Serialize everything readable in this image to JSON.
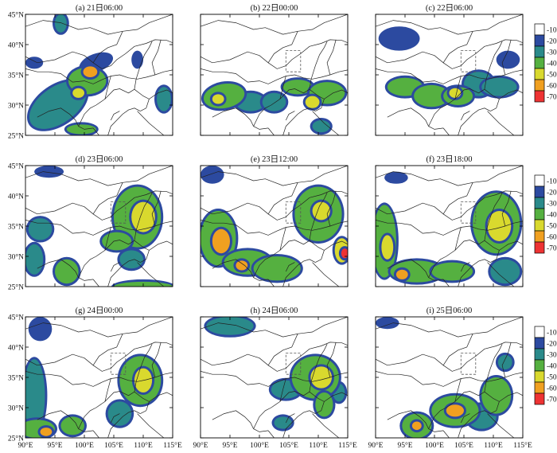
{
  "figure": {
    "panels": [
      {
        "title": "(a) 21日06:00",
        "show_xticks": false,
        "show_yticks": true,
        "box": false,
        "blobs": [
          {
            "lon": 95.5,
            "lat": 30.0,
            "rx": 5.5,
            "ry": 3.0,
            "rot": -35,
            "level": -30
          },
          {
            "lon": 100.5,
            "lat": 34.0,
            "rx": 3.2,
            "ry": 2.2,
            "rot": 0,
            "level": -40
          },
          {
            "lon": 101.0,
            "lat": 35.5,
            "rx": 1.2,
            "ry": 0.9,
            "rot": 0,
            "level": -60
          },
          {
            "lon": 99.0,
            "lat": 32.0,
            "rx": 1.0,
            "ry": 0.8,
            "rot": 0,
            "level": -50
          },
          {
            "lon": 102.0,
            "lat": 37.0,
            "rx": 3.0,
            "ry": 1.5,
            "rot": -20,
            "level": -20
          },
          {
            "lon": 91.5,
            "lat": 37.0,
            "rx": 1.5,
            "ry": 1.0,
            "rot": 0,
            "level": -20
          },
          {
            "lon": 96.0,
            "lat": 43.5,
            "rx": 1.0,
            "ry": 1.5,
            "rot": 0,
            "level": -30
          },
          {
            "lon": 113.5,
            "lat": 31.0,
            "rx": 1.2,
            "ry": 2.0,
            "rot": 0,
            "level": -30
          },
          {
            "lon": 99.5,
            "lat": 26.0,
            "rx": 2.5,
            "ry": 0.8,
            "rot": 0,
            "level": -40
          },
          {
            "lon": 109.0,
            "lat": 37.5,
            "rx": 1.0,
            "ry": 1.5,
            "rot": 0,
            "level": -20
          }
        ]
      },
      {
        "title": "(b) 22日00:00",
        "show_xticks": false,
        "show_yticks": false,
        "box": true,
        "blobs": [
          {
            "lon": 94.0,
            "lat": 31.5,
            "rx": 3.5,
            "ry": 2.0,
            "rot": -10,
            "level": -40
          },
          {
            "lon": 93.0,
            "lat": 31.0,
            "rx": 1.0,
            "ry": 0.8,
            "rot": 0,
            "level": -50
          },
          {
            "lon": 98.5,
            "lat": 30.5,
            "rx": 2.5,
            "ry": 1.5,
            "rot": 0,
            "level": -30
          },
          {
            "lon": 102.5,
            "lat": 30.5,
            "rx": 2.0,
            "ry": 1.5,
            "rot": 0,
            "level": -30
          },
          {
            "lon": 106.5,
            "lat": 33.0,
            "rx": 2.5,
            "ry": 1.2,
            "rot": 0,
            "level": -40
          },
          {
            "lon": 111.5,
            "lat": 32.0,
            "rx": 3.0,
            "ry": 1.8,
            "rot": 0,
            "level": -40
          },
          {
            "lon": 109.0,
            "lat": 30.5,
            "rx": 1.2,
            "ry": 1.0,
            "rot": 0,
            "level": -50
          },
          {
            "lon": 110.5,
            "lat": 26.5,
            "rx": 1.5,
            "ry": 1.0,
            "rot": 0,
            "level": -30
          }
        ]
      },
      {
        "title": "(c) 22日06:00",
        "show_xticks": false,
        "show_yticks": false,
        "box": true,
        "blobs": [
          {
            "lon": 94.0,
            "lat": 41.0,
            "rx": 3.5,
            "ry": 2.0,
            "rot": 0,
            "level": -20
          },
          {
            "lon": 95.0,
            "lat": 33.0,
            "rx": 3.0,
            "ry": 1.5,
            "rot": 0,
            "level": -40
          },
          {
            "lon": 99.5,
            "lat": 31.5,
            "rx": 3.0,
            "ry": 1.8,
            "rot": 0,
            "level": -40
          },
          {
            "lon": 104.0,
            "lat": 31.5,
            "rx": 2.5,
            "ry": 1.5,
            "rot": 0,
            "level": -40
          },
          {
            "lon": 107.5,
            "lat": 33.5,
            "rx": 2.5,
            "ry": 2.0,
            "rot": 0,
            "level": -30
          },
          {
            "lon": 111.0,
            "lat": 33.0,
            "rx": 3.0,
            "ry": 1.5,
            "rot": 0,
            "level": -30
          },
          {
            "lon": 112.5,
            "lat": 37.5,
            "rx": 2.0,
            "ry": 1.5,
            "rot": 0,
            "level": -20
          },
          {
            "lon": 103.5,
            "lat": 32.0,
            "rx": 1.0,
            "ry": 0.8,
            "rot": 0,
            "level": -50
          }
        ]
      },
      {
        "title": "(d) 23日06:00",
        "show_xticks": false,
        "show_yticks": true,
        "box": true,
        "blobs": [
          {
            "lon": 109.0,
            "lat": 36.5,
            "rx": 4.0,
            "ry": 5.0,
            "rot": 0,
            "level": -40
          },
          {
            "lon": 110.0,
            "lat": 36.5,
            "rx": 2.0,
            "ry": 2.5,
            "rot": 0,
            "level": -50
          },
          {
            "lon": 105.5,
            "lat": 32.5,
            "rx": 2.5,
            "ry": 1.5,
            "rot": 0,
            "level": -40
          },
          {
            "lon": 92.5,
            "lat": 34.5,
            "rx": 2.0,
            "ry": 1.8,
            "rot": 0,
            "level": -30
          },
          {
            "lon": 91.5,
            "lat": 29.5,
            "rx": 1.5,
            "ry": 2.5,
            "rot": 0,
            "level": -30
          },
          {
            "lon": 97.0,
            "lat": 27.5,
            "rx": 2.0,
            "ry": 2.0,
            "rot": 0,
            "level": -40
          },
          {
            "lon": 110.0,
            "lat": 25.0,
            "rx": 5.0,
            "ry": 0.8,
            "rot": 0,
            "level": -40
          },
          {
            "lon": 108.0,
            "lat": 29.5,
            "rx": 2.0,
            "ry": 1.5,
            "rot": 0,
            "level": -30
          },
          {
            "lon": 94.0,
            "lat": 44.0,
            "rx": 2.5,
            "ry": 1.0,
            "rot": 0,
            "level": -20
          }
        ]
      },
      {
        "title": "(e) 23日12:00",
        "show_xticks": false,
        "show_yticks": false,
        "box": true,
        "blobs": [
          {
            "lon": 93.0,
            "lat": 33.0,
            "rx": 3.0,
            "ry": 4.5,
            "rot": 0,
            "level": -40
          },
          {
            "lon": 93.5,
            "lat": 32.5,
            "rx": 1.5,
            "ry": 2.0,
            "rot": 0,
            "level": -60
          },
          {
            "lon": 98.0,
            "lat": 29.0,
            "rx": 4.0,
            "ry": 2.0,
            "rot": 0,
            "level": -40
          },
          {
            "lon": 103.0,
            "lat": 28.0,
            "rx": 4.0,
            "ry": 2.0,
            "rot": 0,
            "level": -40
          },
          {
            "lon": 110.0,
            "lat": 37.0,
            "rx": 4.0,
            "ry": 4.5,
            "rot": 0,
            "level": -40
          },
          {
            "lon": 110.5,
            "lat": 37.5,
            "rx": 1.5,
            "ry": 1.5,
            "rot": 0,
            "level": -50
          },
          {
            "lon": 114.0,
            "lat": 31.0,
            "rx": 1.2,
            "ry": 2.0,
            "rot": 0,
            "level": -50
          },
          {
            "lon": 114.5,
            "lat": 30.5,
            "rx": 0.6,
            "ry": 0.8,
            "rot": 0,
            "level": -70
          },
          {
            "lon": 92.0,
            "lat": 43.5,
            "rx": 2.0,
            "ry": 1.5,
            "rot": 0,
            "level": -20
          },
          {
            "lon": 97.0,
            "lat": 28.5,
            "rx": 1.0,
            "ry": 0.8,
            "rot": 0,
            "level": -60
          }
        ]
      },
      {
        "title": "(f) 23日18:00",
        "show_xticks": false,
        "show_yticks": false,
        "box": true,
        "blobs": [
          {
            "lon": 91.5,
            "lat": 32.5,
            "rx": 2.0,
            "ry": 6.0,
            "rot": 0,
            "level": -40
          },
          {
            "lon": 92.0,
            "lat": 31.5,
            "rx": 1.0,
            "ry": 2.0,
            "rot": 0,
            "level": -50
          },
          {
            "lon": 97.0,
            "lat": 27.5,
            "rx": 4.5,
            "ry": 1.8,
            "rot": 0,
            "level": -40
          },
          {
            "lon": 103.0,
            "lat": 27.5,
            "rx": 3.5,
            "ry": 1.5,
            "rot": 0,
            "level": -40
          },
          {
            "lon": 110.5,
            "lat": 35.5,
            "rx": 4.0,
            "ry": 5.0,
            "rot": 0,
            "level": -40
          },
          {
            "lon": 111.0,
            "lat": 35.0,
            "rx": 2.0,
            "ry": 2.5,
            "rot": 0,
            "level": -50
          },
          {
            "lon": 112.0,
            "lat": 27.5,
            "rx": 2.5,
            "ry": 2.0,
            "rot": 0,
            "level": -30
          },
          {
            "lon": 94.5,
            "lat": 27.0,
            "rx": 1.0,
            "ry": 0.8,
            "rot": 0,
            "level": -60
          },
          {
            "lon": 93.5,
            "lat": 43.0,
            "rx": 2.0,
            "ry": 1.0,
            "rot": 0,
            "level": -20
          }
        ]
      },
      {
        "title": "(g) 24日00:00",
        "show_xticks": true,
        "show_yticks": true,
        "box": true,
        "blobs": [
          {
            "lon": 91.5,
            "lat": 32.0,
            "rx": 1.8,
            "ry": 6.0,
            "rot": 0,
            "level": -30
          },
          {
            "lon": 92.0,
            "lat": 26.5,
            "rx": 3.0,
            "ry": 1.5,
            "rot": 0,
            "level": -40
          },
          {
            "lon": 93.5,
            "lat": 26.0,
            "rx": 1.0,
            "ry": 0.7,
            "rot": 0,
            "level": -60
          },
          {
            "lon": 98.0,
            "lat": 27.0,
            "rx": 2.0,
            "ry": 1.5,
            "rot": 0,
            "level": -40
          },
          {
            "lon": 109.5,
            "lat": 34.5,
            "rx": 3.5,
            "ry": 4.0,
            "rot": 0,
            "level": -40
          },
          {
            "lon": 110.0,
            "lat": 34.5,
            "rx": 1.5,
            "ry": 2.0,
            "rot": 0,
            "level": -50
          },
          {
            "lon": 106.0,
            "lat": 29.0,
            "rx": 2.0,
            "ry": 2.0,
            "rot": 0,
            "level": -30
          },
          {
            "lon": 92.5,
            "lat": 43.0,
            "rx": 2.0,
            "ry": 2.0,
            "rot": 0,
            "level": -20
          }
        ]
      },
      {
        "title": "(h) 24日06:00",
        "show_xticks": true,
        "show_yticks": false,
        "box": true,
        "blobs": [
          {
            "lon": 109.5,
            "lat": 35.0,
            "rx": 4.0,
            "ry": 3.5,
            "rot": 0,
            "level": -40
          },
          {
            "lon": 110.5,
            "lat": 35.0,
            "rx": 1.8,
            "ry": 1.8,
            "rot": 0,
            "level": -50
          },
          {
            "lon": 111.0,
            "lat": 30.5,
            "rx": 1.5,
            "ry": 2.0,
            "rot": 0,
            "level": -40
          },
          {
            "lon": 95.0,
            "lat": 43.5,
            "rx": 4.0,
            "ry": 1.5,
            "rot": 0,
            "level": -30
          },
          {
            "lon": 104.5,
            "lat": 33.0,
            "rx": 2.5,
            "ry": 1.5,
            "rot": 0,
            "level": -30
          },
          {
            "lon": 104.0,
            "lat": 27.5,
            "rx": 1.5,
            "ry": 1.0,
            "rot": 0,
            "level": -30
          },
          {
            "lon": 113.5,
            "lat": 32.5,
            "rx": 1.0,
            "ry": 1.5,
            "rot": 0,
            "level": -30
          }
        ]
      },
      {
        "title": "(i) 25日06:00",
        "show_xticks": true,
        "show_yticks": false,
        "box": true,
        "blobs": [
          {
            "lon": 103.5,
            "lat": 29.5,
            "rx": 4.0,
            "ry": 2.5,
            "rot": 0,
            "level": -40
          },
          {
            "lon": 103.5,
            "lat": 29.5,
            "rx": 1.5,
            "ry": 1.0,
            "rot": 0,
            "level": -60
          },
          {
            "lon": 97.0,
            "lat": 27.0,
            "rx": 2.5,
            "ry": 2.0,
            "rot": 0,
            "level": -40
          },
          {
            "lon": 97.0,
            "lat": 27.0,
            "rx": 0.8,
            "ry": 0.7,
            "rot": 0,
            "level": -60
          },
          {
            "lon": 110.5,
            "lat": 32.0,
            "rx": 2.5,
            "ry": 3.0,
            "rot": 0,
            "level": -40
          },
          {
            "lon": 108.0,
            "lat": 28.5,
            "rx": 2.5,
            "ry": 2.0,
            "rot": 0,
            "level": -30
          },
          {
            "lon": 112.0,
            "lat": 37.5,
            "rx": 1.2,
            "ry": 1.2,
            "rot": 0,
            "level": -30
          },
          {
            "lon": 92.0,
            "lat": 44.0,
            "rx": 2.0,
            "ry": 1.0,
            "rot": 0,
            "level": -20
          }
        ]
      }
    ],
    "xticks": [
      "90°E",
      "95°E",
      "100°E",
      "105°E",
      "110°E",
      "115°E"
    ],
    "yticks": [
      "45°N",
      "40°N",
      "35°N",
      "30°N",
      "25°N"
    ],
    "colorbar": {
      "labels": [
        "-10",
        "-20",
        "-30",
        "-40",
        "-50",
        "-60",
        "-70"
      ],
      "levels": [
        -10,
        -20,
        -30,
        -40,
        -50,
        -60,
        -70
      ],
      "colors": [
        "#ffffff",
        "#2c4aa0",
        "#2a8a8a",
        "#55b040",
        "#d9d92e",
        "#f0a020",
        "#ee3333"
      ]
    }
  },
  "chart_data": {
    "type": "heatmap",
    "variable": "brightness temperature contours (colour-shaded)",
    "panels": [
      "(a) 21日06:00",
      "(b) 22日00:00",
      "(c) 22日06:00",
      "(d) 23日06:00",
      "(e) 23日12:00",
      "(f) 23日18:00",
      "(g) 24日00:00",
      "(h) 24日06:00",
      "(i) 25日06:00"
    ],
    "xlim": [
      90,
      115
    ],
    "ylim": [
      25,
      45
    ],
    "x_ticks": [
      "90°E",
      "95°E",
      "100°E",
      "105°E",
      "110°E",
      "115°E"
    ],
    "y_ticks": [
      "45°N",
      "40°N",
      "35°N",
      "30°N",
      "25°N"
    ],
    "colorbar_levels": [
      -10,
      -20,
      -30,
      -40,
      -50,
      -60,
      -70
    ],
    "box_region": {
      "lon": [
        104.5,
        107
      ],
      "lat": [
        35.5,
        39
      ]
    }
  }
}
